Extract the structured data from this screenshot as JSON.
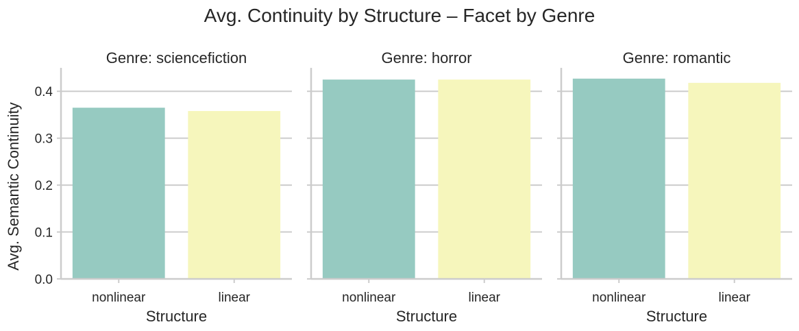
{
  "chart_data": {
    "type": "bar",
    "title": "Avg. Continuity by Structure – Facet by Genre",
    "xlabel": "Structure",
    "ylabel": "Avg. Semantic Continuity",
    "ylim": [
      0,
      0.45
    ],
    "yticks": [
      "0.0",
      "0.1",
      "0.2",
      "0.3",
      "0.4"
    ],
    "grid": "horizontal",
    "categories": [
      "nonlinear",
      "linear"
    ],
    "colors": [
      "#96cac1",
      "#f6f6bc"
    ],
    "facets": [
      {
        "title": "Genre: sciencefiction",
        "values": [
          0.365,
          0.358
        ]
      },
      {
        "title": "Genre: horror",
        "values": [
          0.425,
          0.425
        ]
      },
      {
        "title": "Genre: romantic",
        "values": [
          0.427,
          0.418
        ]
      }
    ]
  }
}
